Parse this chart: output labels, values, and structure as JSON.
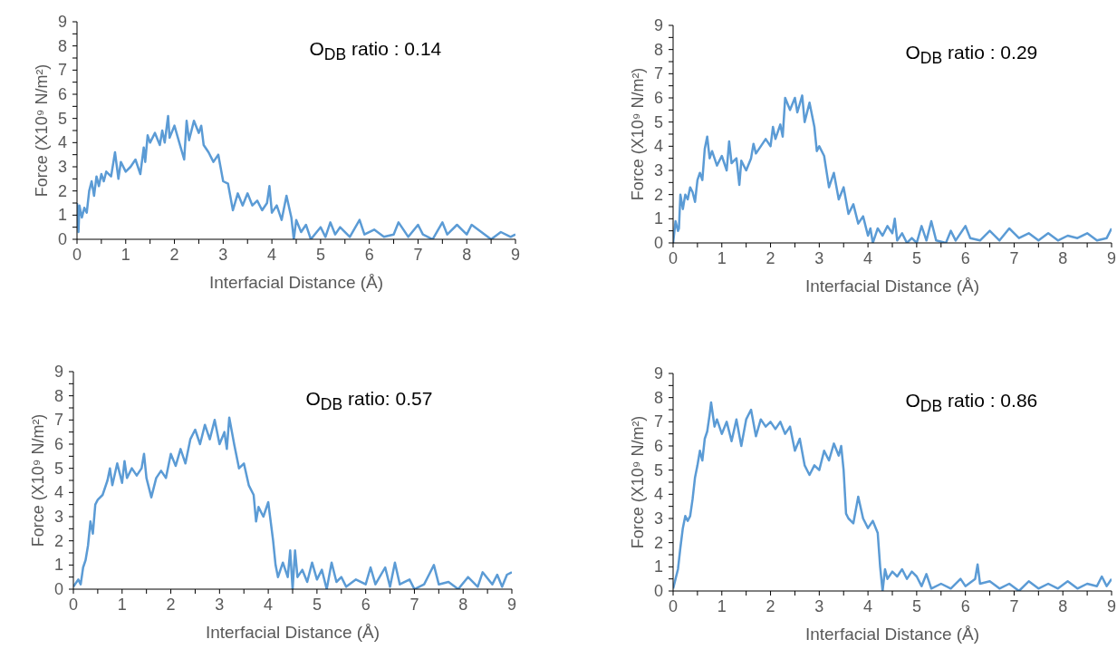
{
  "chart_data": [
    {
      "type": "line",
      "xlabel": "Interfacial Distance (Å)",
      "ylabel": "Force (X10⁹ N/m²)",
      "annotations": [
        "O$_{DB}$ ratio : 0.14"
      ],
      "xlim": [
        0,
        9
      ],
      "ylim": [
        0,
        9
      ],
      "xticks": [
        0,
        {
          "value": 0.5,
          "label": null
        },
        1,
        {
          "value": 1.5,
          "label": null
        },
        2,
        {
          "value": 2.5,
          "label": null
        },
        3,
        {
          "value": 3.5,
          "label": null
        },
        4,
        {
          "value": 4.5,
          "label": null
        },
        5,
        {
          "value": 5.5,
          "label": null
        },
        6,
        {
          "value": 6.5,
          "label": null
        },
        7,
        {
          "value": 7.5,
          "label": null
        },
        8,
        {
          "value": 8.5,
          "label": null
        },
        9
      ],
      "yticks": [
        0,
        {
          "value": 0.5,
          "label": null
        },
        1,
        {
          "value": 1.5,
          "label": null
        },
        2,
        {
          "value": 2.5,
          "label": null
        },
        3,
        {
          "value": 3.5,
          "label": null
        },
        4,
        {
          "value": 4.5,
          "label": null
        },
        5,
        {
          "value": 5.5,
          "label": null
        },
        6,
        {
          "value": 6.5,
          "label": null
        },
        7,
        {
          "value": 7.5,
          "label": null
        },
        8,
        {
          "value": 8.5,
          "label": null
        },
        9
      ],
      "grid": false,
      "marker": "none",
      "line_style": "solid",
      "series": [
        {
          "color": "#5b9bd5",
          "x": [
            0,
            0.03,
            0.05,
            0.1,
            0.15,
            0.2,
            0.25,
            0.3,
            0.35,
            0.4,
            0.45,
            0.5,
            0.55,
            0.6,
            0.7,
            0.78,
            0.85,
            0.9,
            1.0,
            1.1,
            1.2,
            1.3,
            1.37,
            1.4,
            1.45,
            1.5,
            1.6,
            1.7,
            1.75,
            1.8,
            1.87,
            1.9,
            2.0,
            2.1,
            2.2,
            2.25,
            2.3,
            2.4,
            2.5,
            2.55,
            2.6,
            2.7,
            2.8,
            2.9,
            3.0,
            3.1,
            3.2,
            3.3,
            3.4,
            3.5,
            3.6,
            3.7,
            3.8,
            3.9,
            3.95,
            4.0,
            4.1,
            4.2,
            4.3,
            4.4,
            4.45,
            4.5,
            4.6,
            4.7,
            4.8,
            5.0,
            5.1,
            5.2,
            5.3,
            5.4,
            5.6,
            5.8,
            5.9,
            6.1,
            6.3,
            6.5,
            6.6,
            6.8,
            7.0,
            7.1,
            7.3,
            7.5,
            7.6,
            7.8,
            8.0,
            8.1,
            8.3,
            8.5,
            8.7,
            8.9,
            9.0
          ],
          "values": [
            1.5,
            0.3,
            1.4,
            0.9,
            1.3,
            1.1,
            2.0,
            2.4,
            1.8,
            2.6,
            2.2,
            2.7,
            2.4,
            2.8,
            2.6,
            3.6,
            2.5,
            3.2,
            2.8,
            3.0,
            3.3,
            2.7,
            3.8,
            3.2,
            4.3,
            4.0,
            4.4,
            3.9,
            4.5,
            4.0,
            5.1,
            4.2,
            4.7,
            4.0,
            3.3,
            4.9,
            4.1,
            4.9,
            4.4,
            4.7,
            3.9,
            3.6,
            3.2,
            3.5,
            2.4,
            2.3,
            1.2,
            1.9,
            1.4,
            1.9,
            1.4,
            1.6,
            1.2,
            1.5,
            2.2,
            1.1,
            1.4,
            0.8,
            1.8,
            0.9,
            0.0,
            0.8,
            0.3,
            0.6,
            0.0,
            0.5,
            0.1,
            0.7,
            0.2,
            0.5,
            0.1,
            0.8,
            0.2,
            0.4,
            0.1,
            0.2,
            0.7,
            0.1,
            0.6,
            0.2,
            0.0,
            0.7,
            0.2,
            0.6,
            0.2,
            0.6,
            0.3,
            0.0,
            0.3,
            0.1,
            0.2
          ]
        }
      ]
    },
    {
      "type": "line",
      "xlabel": "Interfacial Distance (Å)",
      "ylabel": "Force (X10⁹ N/m²)",
      "annotations": [
        "O$_{DB}$ ratio : 0.29"
      ],
      "xlim": [
        0,
        9
      ],
      "ylim": [
        0,
        9
      ],
      "xticks": [
        0,
        {
          "value": 0.5,
          "label": null
        },
        1,
        {
          "value": 1.5,
          "label": null
        },
        2,
        {
          "value": 2.5,
          "label": null
        },
        3,
        {
          "value": 3.5,
          "label": null
        },
        4,
        {
          "value": 4.5,
          "label": null
        },
        5,
        {
          "value": 5.5,
          "label": null
        },
        6,
        {
          "value": 6.5,
          "label": null
        },
        7,
        {
          "value": 7.5,
          "label": null
        },
        8,
        {
          "value": 8.5,
          "label": null
        },
        9
      ],
      "yticks": [
        0,
        {
          "value": 0.5,
          "label": null
        },
        1,
        {
          "value": 1.5,
          "label": null
        },
        2,
        {
          "value": 2.5,
          "label": null
        },
        3,
        {
          "value": 3.5,
          "label": null
        },
        4,
        {
          "value": 4.5,
          "label": null
        },
        5,
        {
          "value": 5.5,
          "label": null
        },
        6,
        {
          "value": 6.5,
          "label": null
        },
        7,
        {
          "value": 7.5,
          "label": null
        },
        8,
        {
          "value": 8.5,
          "label": null
        },
        9
      ],
      "grid": false,
      "marker": "none",
      "line_style": "solid",
      "series": [
        {
          "color": "#5b9bd5",
          "x": [
            0,
            0.05,
            0.1,
            0.12,
            0.15,
            0.2,
            0.25,
            0.3,
            0.35,
            0.4,
            0.45,
            0.5,
            0.55,
            0.6,
            0.65,
            0.7,
            0.75,
            0.8,
            0.9,
            1.0,
            1.1,
            1.15,
            1.2,
            1.3,
            1.36,
            1.4,
            1.5,
            1.6,
            1.65,
            1.7,
            1.8,
            1.9,
            2.0,
            2.05,
            2.1,
            2.2,
            2.25,
            2.3,
            2.4,
            2.5,
            2.55,
            2.65,
            2.7,
            2.8,
            2.9,
            2.95,
            3.0,
            3.1,
            3.2,
            3.3,
            3.4,
            3.5,
            3.6,
            3.7,
            3.8,
            3.9,
            4.0,
            4.05,
            4.1,
            4.2,
            4.3,
            4.4,
            4.5,
            4.55,
            4.6,
            4.7,
            4.8,
            4.9,
            5.0,
            5.1,
            5.2,
            5.3,
            5.4,
            5.6,
            5.7,
            5.8,
            6.0,
            6.1,
            6.3,
            6.5,
            6.7,
            6.9,
            7.1,
            7.3,
            7.5,
            7.7,
            7.9,
            8.1,
            8.3,
            8.5,
            8.7,
            8.9,
            9.0
          ],
          "values": [
            0.0,
            0.9,
            0.5,
            0.6,
            2.0,
            1.4,
            2.0,
            1.8,
            2.3,
            2.1,
            1.7,
            2.6,
            2.9,
            2.6,
            3.9,
            4.4,
            3.5,
            3.8,
            3.2,
            3.6,
            3.0,
            4.2,
            3.3,
            3.5,
            2.4,
            3.4,
            3.0,
            3.5,
            4.1,
            3.7,
            4.0,
            4.3,
            4.0,
            4.8,
            4.3,
            4.9,
            4.4,
            6.0,
            5.5,
            6.0,
            5.4,
            6.1,
            5.0,
            5.8,
            4.8,
            3.8,
            4.0,
            3.6,
            2.3,
            2.9,
            1.8,
            2.3,
            1.2,
            1.6,
            0.8,
            1.1,
            0.3,
            0.6,
            0.0,
            0.6,
            0.3,
            0.7,
            0.4,
            1.0,
            0.1,
            0.4,
            0.0,
            0.2,
            0.0,
            0.7,
            0.1,
            0.9,
            0.1,
            0.0,
            0.5,
            0.1,
            0.7,
            0.2,
            0.1,
            0.5,
            0.1,
            0.6,
            0.2,
            0.4,
            0.1,
            0.4,
            0.1,
            0.3,
            0.2,
            0.4,
            0.1,
            0.2,
            0.6
          ]
        }
      ]
    },
    {
      "type": "line",
      "xlabel": "Interfacial Distance (Å)",
      "ylabel": "Force (X10⁹ N/m²)",
      "annotations": [
        "O$_{DB}$ ratio: 0.57"
      ],
      "xlim": [
        0,
        9
      ],
      "ylim": [
        0,
        9
      ],
      "xticks": [
        0,
        {
          "value": 0.5,
          "label": null
        },
        1,
        {
          "value": 1.5,
          "label": null
        },
        2,
        {
          "value": 2.5,
          "label": null
        },
        3,
        {
          "value": 3.5,
          "label": null
        },
        4,
        {
          "value": 4.5,
          "label": null
        },
        5,
        {
          "value": 5.5,
          "label": null
        },
        6,
        {
          "value": 6.5,
          "label": null
        },
        7,
        {
          "value": 7.5,
          "label": null
        },
        8,
        {
          "value": 8.5,
          "label": null
        },
        9
      ],
      "yticks": [
        0,
        {
          "value": 0.5,
          "label": null
        },
        1,
        {
          "value": 1.5,
          "label": null
        },
        2,
        {
          "value": 2.5,
          "label": null
        },
        3,
        {
          "value": 3.5,
          "label": null
        },
        4,
        {
          "value": 4.5,
          "label": null
        },
        5,
        {
          "value": 5.5,
          "label": null
        },
        6,
        {
          "value": 6.5,
          "label": null
        },
        7,
        {
          "value": 7.5,
          "label": null
        },
        8,
        {
          "value": 8.5,
          "label": null
        },
        9
      ],
      "grid": false,
      "marker": "none",
      "line_style": "solid",
      "series": [
        {
          "color": "#5b9bd5",
          "x": [
            0,
            0.1,
            0.15,
            0.2,
            0.25,
            0.3,
            0.35,
            0.4,
            0.45,
            0.5,
            0.6,
            0.7,
            0.75,
            0.8,
            0.9,
            1.0,
            1.05,
            1.1,
            1.2,
            1.3,
            1.4,
            1.45,
            1.5,
            1.6,
            1.7,
            1.8,
            1.9,
            2.0,
            2.1,
            2.2,
            2.3,
            2.4,
            2.5,
            2.6,
            2.7,
            2.8,
            2.9,
            3.0,
            3.1,
            3.15,
            3.2,
            3.3,
            3.4,
            3.5,
            3.6,
            3.7,
            3.75,
            3.8,
            3.9,
            4.0,
            4.1,
            4.15,
            4.2,
            4.3,
            4.4,
            4.45,
            4.5,
            4.55,
            4.6,
            4.7,
            4.8,
            4.9,
            5.0,
            5.1,
            5.2,
            5.3,
            5.4,
            5.5,
            5.6,
            5.8,
            6.0,
            6.1,
            6.2,
            6.4,
            6.5,
            6.6,
            6.7,
            6.9,
            7.0,
            7.2,
            7.3,
            7.4,
            7.5,
            7.7,
            7.9,
            8.1,
            8.3,
            8.4,
            8.6,
            8.7,
            8.8,
            8.9,
            9.0
          ],
          "values": [
            0.1,
            0.4,
            0.2,
            0.9,
            1.2,
            1.8,
            2.8,
            2.3,
            3.5,
            3.7,
            3.9,
            4.5,
            5.0,
            4.3,
            5.2,
            4.4,
            5.3,
            4.6,
            5.0,
            4.7,
            5.0,
            5.6,
            4.6,
            3.8,
            4.6,
            4.9,
            4.6,
            5.6,
            5.1,
            5.8,
            5.2,
            6.2,
            6.6,
            6.0,
            6.8,
            6.2,
            7.0,
            6.0,
            6.5,
            5.8,
            7.1,
            6.0,
            5.0,
            5.2,
            4.3,
            3.9,
            2.8,
            3.4,
            3.0,
            3.6,
            2.0,
            1.0,
            0.5,
            1.1,
            0.5,
            1.6,
            0.0,
            1.6,
            0.5,
            0.8,
            0.3,
            1.1,
            0.4,
            0.8,
            0.0,
            1.1,
            0.3,
            0.5,
            0.1,
            0.4,
            0.2,
            0.9,
            0.2,
            0.9,
            0.1,
            1.1,
            0.2,
            0.4,
            0.0,
            0.2,
            0.6,
            1.0,
            0.2,
            0.3,
            0.0,
            0.5,
            0.1,
            0.7,
            0.2,
            0.6,
            0.1,
            0.6,
            0.7
          ]
        }
      ]
    },
    {
      "type": "line",
      "xlabel": "Interfacial Distance (Å)",
      "ylabel": "Force (X10⁹ N/m²)",
      "annotations": [
        "O$_{DB}$ ratio : 0.86"
      ],
      "xlim": [
        0,
        9
      ],
      "ylim": [
        0,
        9
      ],
      "xticks": [
        0,
        {
          "value": 0.5,
          "label": null
        },
        1,
        {
          "value": 1.5,
          "label": null
        },
        2,
        {
          "value": 2.5,
          "label": null
        },
        3,
        {
          "value": 3.5,
          "label": null
        },
        4,
        {
          "value": 4.5,
          "label": null
        },
        5,
        {
          "value": 5.5,
          "label": null
        },
        6,
        {
          "value": 6.5,
          "label": null
        },
        7,
        {
          "value": 7.5,
          "label": null
        },
        8,
        {
          "value": 8.5,
          "label": null
        },
        9
      ],
      "yticks": [
        0,
        {
          "value": 0.5,
          "label": null
        },
        1,
        {
          "value": 1.5,
          "label": null
        },
        2,
        {
          "value": 2.5,
          "label": null
        },
        3,
        {
          "value": 3.5,
          "label": null
        },
        4,
        {
          "value": 4.5,
          "label": null
        },
        5,
        {
          "value": 5.5,
          "label": null
        },
        6,
        {
          "value": 6.5,
          "label": null
        },
        7,
        {
          "value": 7.5,
          "label": null
        },
        8,
        {
          "value": 8.5,
          "label": null
        },
        9
      ],
      "grid": false,
      "marker": "none",
      "line_style": "solid",
      "series": [
        {
          "color": "#5b9bd5",
          "x": [
            0,
            0.05,
            0.1,
            0.15,
            0.2,
            0.25,
            0.3,
            0.35,
            0.4,
            0.45,
            0.5,
            0.55,
            0.6,
            0.65,
            0.7,
            0.75,
            0.78,
            0.85,
            0.9,
            1.0,
            1.1,
            1.2,
            1.3,
            1.4,
            1.5,
            1.6,
            1.7,
            1.8,
            1.9,
            2.0,
            2.1,
            2.2,
            2.3,
            2.4,
            2.5,
            2.6,
            2.7,
            2.8,
            2.9,
            3.0,
            3.1,
            3.2,
            3.3,
            3.4,
            3.45,
            3.5,
            3.55,
            3.6,
            3.7,
            3.8,
            3.9,
            4.0,
            4.1,
            4.2,
            4.25,
            4.3,
            4.35,
            4.4,
            4.5,
            4.6,
            4.7,
            4.8,
            4.9,
            5.0,
            5.1,
            5.2,
            5.3,
            5.5,
            5.7,
            5.9,
            6.0,
            6.2,
            6.25,
            6.3,
            6.5,
            6.7,
            6.9,
            7.1,
            7.3,
            7.5,
            7.7,
            7.9,
            8.1,
            8.3,
            8.5,
            8.7,
            8.8,
            8.9,
            9.0
          ],
          "values": [
            0.1,
            0.5,
            0.9,
            1.8,
            2.6,
            3.1,
            2.9,
            3.1,
            3.8,
            4.7,
            5.2,
            5.8,
            5.4,
            6.3,
            6.6,
            7.3,
            7.8,
            6.8,
            7.1,
            6.5,
            7.0,
            6.2,
            7.1,
            6.0,
            7.1,
            7.5,
            6.4,
            7.1,
            6.8,
            7.0,
            6.7,
            7.0,
            6.5,
            6.8,
            5.8,
            6.3,
            5.2,
            4.8,
            5.2,
            5.0,
            5.8,
            5.4,
            6.1,
            5.6,
            6.0,
            5.0,
            3.2,
            3.0,
            2.8,
            3.9,
            3.0,
            2.6,
            2.9,
            2.4,
            1.0,
            0.0,
            0.9,
            0.5,
            0.8,
            0.6,
            0.9,
            0.5,
            0.8,
            0.6,
            0.2,
            0.7,
            0.1,
            0.3,
            0.1,
            0.5,
            0.2,
            0.5,
            1.1,
            0.3,
            0.4,
            0.1,
            0.3,
            0.0,
            0.4,
            0.1,
            0.3,
            0.1,
            0.4,
            0.1,
            0.3,
            0.2,
            0.6,
            0.2,
            0.5
          ]
        }
      ]
    }
  ]
}
